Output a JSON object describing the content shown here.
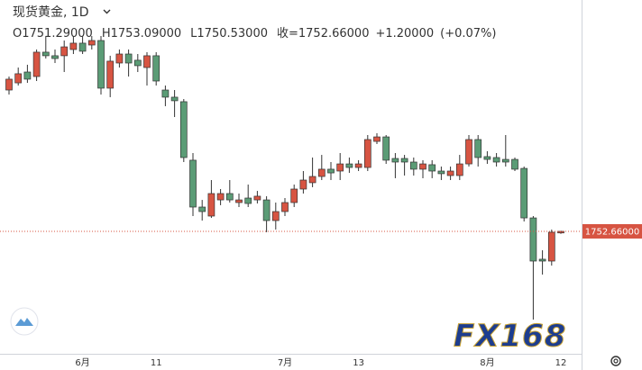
{
  "chart_data": {
    "type": "candlestick",
    "title": "现货黄金, 1D",
    "ohlc_labels": [
      "O1751.29000",
      "H1753.09000",
      "L1750.53000",
      "收=1752.66000",
      "+1.20000",
      "(+0.07%)"
    ],
    "watermark": "FX168",
    "up_color": "#d75442",
    "down_color": "#5b9c76",
    "categories": [
      null,
      null,
      null,
      null,
      null,
      null,
      null,
      null,
      "6月",
      null,
      null,
      null,
      null,
      null,
      null,
      null,
      "11",
      null,
      null,
      null,
      null,
      null,
      null,
      null,
      null,
      null,
      null,
      null,
      null,
      null,
      "7月",
      null,
      null,
      null,
      null,
      null,
      null,
      null,
      "13",
      null,
      null,
      null,
      null,
      null,
      null,
      null,
      null,
      null,
      null,
      null,
      null,
      null,
      "8月",
      null,
      null,
      null,
      null,
      null,
      null,
      null,
      "12"
    ],
    "open": [
      1875.1,
      1881.3,
      1890.7,
      1886.8,
      1907.9,
      1904.8,
      1904.8,
      1910.2,
      1915.7,
      1914.1,
      1918.0,
      1876.7,
      1898.5,
      1906.3,
      1900.9,
      1894.6,
      1904.8,
      1875.1,
      1868.9,
      1865.0,
      1814.3,
      1773.7,
      1765.9,
      1779.9,
      1785.4,
      1777.6,
      1781.5,
      1779.9,
      1779.9,
      1762.0,
      1769.8,
      1777.6,
      1789.3,
      1794.8,
      1800.2,
      1806.5,
      1804.9,
      1811.1,
      1808.0,
      1808.0,
      1830.6,
      1834.5,
      1815.8,
      1815.8,
      1812.7,
      1806.5,
      1810.4,
      1804.9,
      1801.0,
      1801.0,
      1811.1,
      1832.2,
      1817.4,
      1816.6,
      1815.0,
      1815.0,
      1807.2,
      1764.3,
      1728.5,
      1726.9,
      1751.29
    ],
    "high": [
      1886.8,
      1894.6,
      1897.0,
      1910.2,
      1921.9,
      1910.2,
      1918.0,
      1921.9,
      1921.9,
      1921.9,
      1921.9,
      1904.8,
      1910.2,
      1910.2,
      1906.3,
      1907.9,
      1907.9,
      1879.0,
      1875.1,
      1867.3,
      1820.5,
      1779.9,
      1797.1,
      1789.3,
      1797.1,
      1785.4,
      1793.2,
      1787.7,
      1783.1,
      1777.6,
      1781.5,
      1793.2,
      1804.9,
      1816.6,
      1818.9,
      1812.7,
      1820.5,
      1816.6,
      1814.3,
      1836.1,
      1837.7,
      1836.1,
      1820.5,
      1818.9,
      1816.6,
      1814.3,
      1814.3,
      1808.8,
      1808.8,
      1818.9,
      1836.1,
      1836.1,
      1822.1,
      1820.5,
      1836.1,
      1816.6,
      1808.8,
      1765.9,
      1736.3,
      1754.2,
      1753.09
    ],
    "low": [
      1871.2,
      1879.0,
      1881.3,
      1882.9,
      1902.4,
      1898.5,
      1890.7,
      1906.3,
      1906.3,
      1910.2,
      1871.2,
      1868.9,
      1894.6,
      1886.8,
      1890.7,
      1879.0,
      1879.0,
      1861.1,
      1851.7,
      1812.7,
      1765.9,
      1762.0,
      1764.3,
      1775.3,
      1777.6,
      1773.7,
      1773.7,
      1776.8,
      1751.9,
      1754.2,
      1765.9,
      1773.7,
      1785.4,
      1790.9,
      1797.1,
      1797.1,
      1797.1,
      1803.3,
      1804.9,
      1804.9,
      1828.3,
      1811.1,
      1798.7,
      1801.0,
      1801.0,
      1798.7,
      1798.7,
      1797.1,
      1797.1,
      1797.1,
      1808.8,
      1808.8,
      1811.1,
      1808.8,
      1808.8,
      1804.9,
      1761.2,
      1676.2,
      1715.2,
      1723.0,
      1750.53
    ],
    "close": [
      1884.5,
      1889.2,
      1884.5,
      1907.9,
      1904.8,
      1902.4,
      1912.5,
      1915.7,
      1908.7,
      1918.0,
      1876.7,
      1900.1,
      1906.3,
      1898.5,
      1896.2,
      1904.8,
      1882.9,
      1868.9,
      1865.8,
      1816.6,
      1773.7,
      1769.8,
      1785.4,
      1785.4,
      1779.9,
      1779.9,
      1776.8,
      1783.1,
      1762.0,
      1769.8,
      1777.6,
      1789.3,
      1797.1,
      1800.2,
      1806.5,
      1803.3,
      1811.1,
      1808.0,
      1811.1,
      1832.2,
      1834.5,
      1814.3,
      1812.7,
      1812.7,
      1806.5,
      1811.1,
      1804.9,
      1802.6,
      1804.9,
      1811.1,
      1832.2,
      1816.6,
      1815.0,
      1812.7,
      1812.7,
      1806.5,
      1764.3,
      1726.9,
      1726.9,
      1751.9,
      1752.66
    ],
    "last_price": {
      "value": 1752.66,
      "label": "1752.66000"
    },
    "ylim": [
      1645,
      1953.1
    ]
  }
}
